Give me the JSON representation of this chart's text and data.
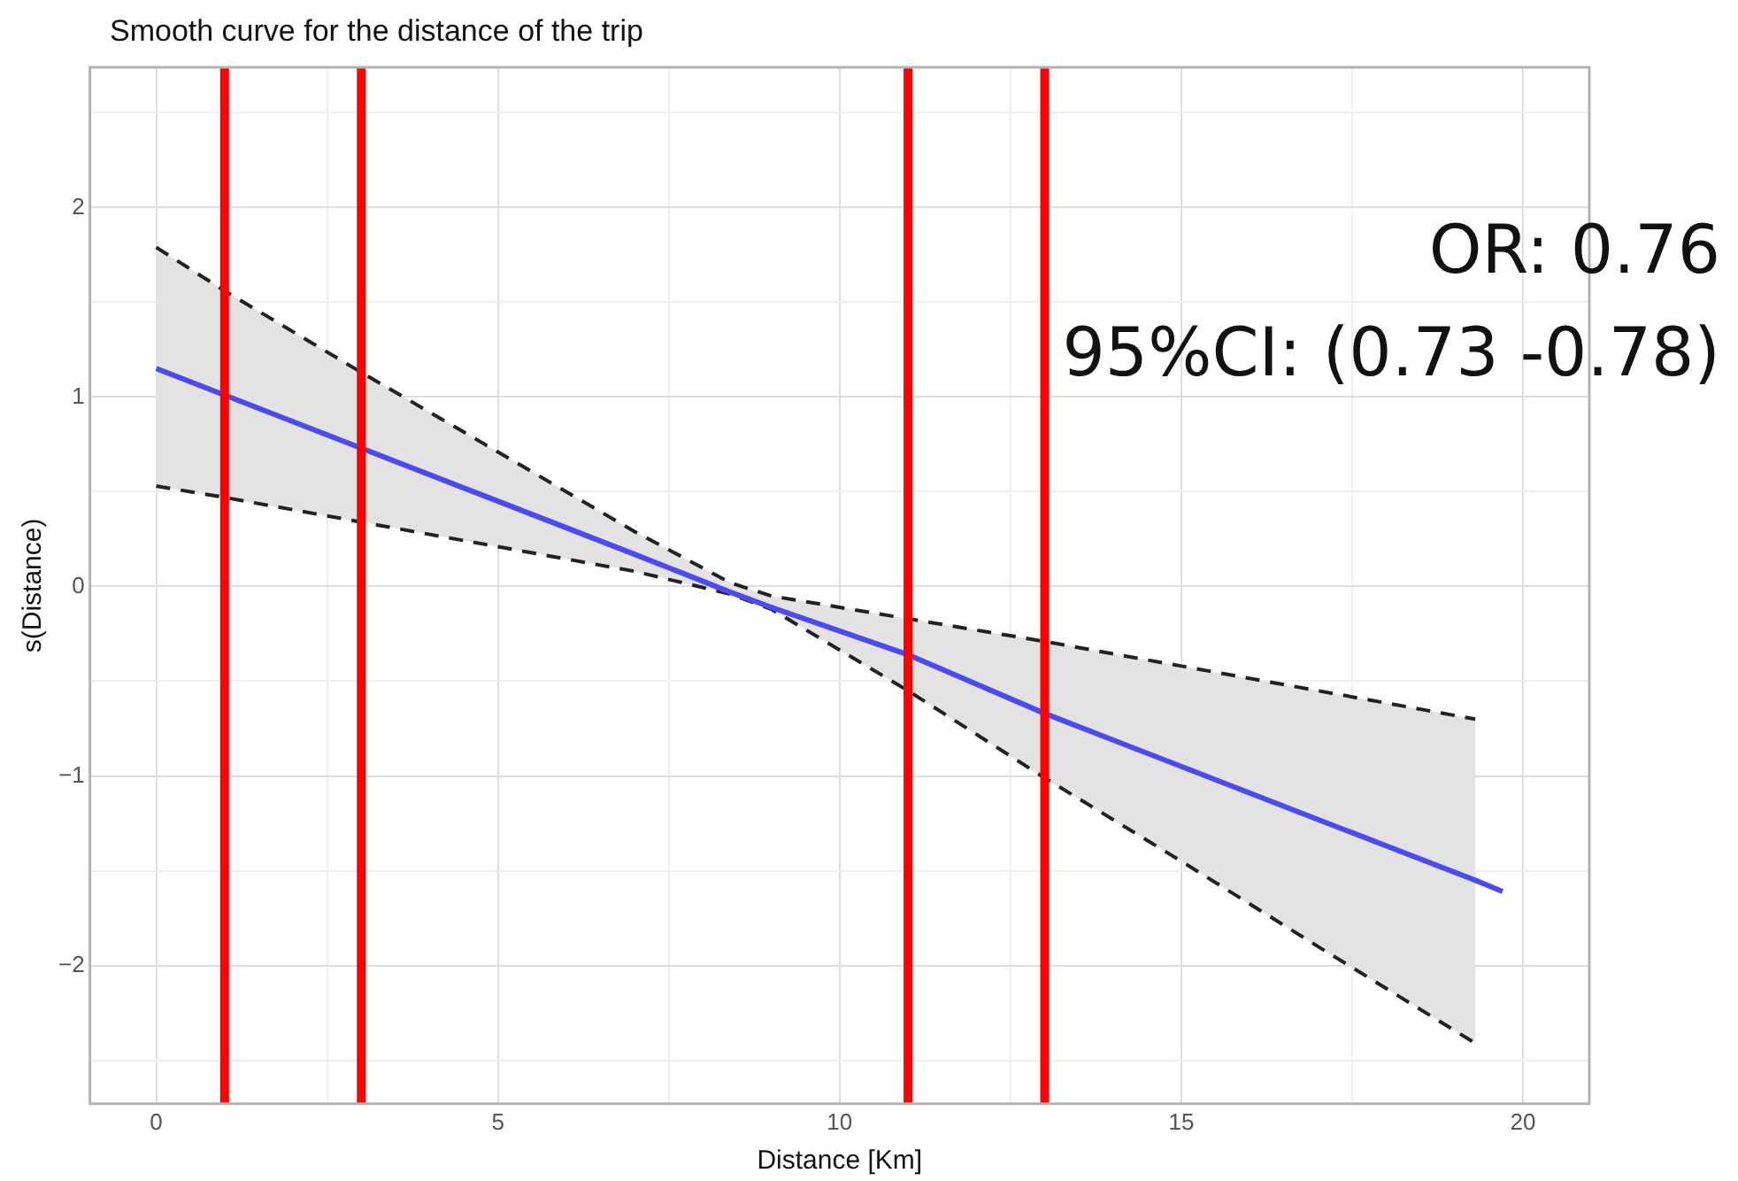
{
  "chart_data": {
    "type": "line",
    "title": "Smooth curve for the distance of the trip",
    "xlabel": "Distance [Km]",
    "ylabel": "s(Distance)",
    "annotations": [
      "OR: 0.76",
      "95%CI: (0.73 -0.78)"
    ],
    "xlim": [
      -0.97,
      20.97
    ],
    "ylim": [
      -2.73,
      2.74
    ],
    "xticks": [
      0,
      {
        "value": 2.5,
        "label": null
      },
      5,
      {
        "value": 7.5,
        "label": null
      },
      10,
      {
        "value": 12.5,
        "label": null
      },
      15,
      {
        "value": 17.5,
        "label": null
      },
      20
    ],
    "yticks": [
      {
        "value": -2.5,
        "label": null
      },
      {
        "value": -2,
        "label": "−2"
      },
      {
        "value": -1.5,
        "label": null
      },
      {
        "value": -1,
        "label": "−1"
      },
      {
        "value": -0.5,
        "label": null
      },
      0,
      {
        "value": 0.5,
        "label": null
      },
      1,
      {
        "value": 1.5,
        "label": null
      },
      2,
      {
        "value": 2.5,
        "label": null
      }
    ],
    "grid": true,
    "marker": "none",
    "line_style": "solid",
    "series": [
      {
        "color": "#4b4bef",
        "x": [
          0,
          1,
          3,
          5,
          7,
          8.4,
          9,
          11,
          13,
          15,
          17,
          19.3,
          19.7
        ],
        "values": [
          1.15,
          1.01,
          0.73,
          0.45,
          0.17,
          -0.03,
          -0.11,
          -0.36,
          -0.67,
          -0.95,
          -1.23,
          -1.55,
          -1.61
        ],
        "lower": [
          0.53,
          0.47,
          0.34,
          0.21,
          0.08,
          -0.04,
          -0.12,
          -0.55,
          -1.01,
          -1.45,
          -1.9,
          -2.41,
          null
        ],
        "upper": [
          1.79,
          1.56,
          1.13,
          0.71,
          0.29,
          0.02,
          -0.05,
          -0.17,
          -0.29,
          -0.42,
          -0.55,
          -0.7,
          null
        ]
      },
      {
        "color": "#222222",
        "line_style": "dashed",
        "x": [
          0,
          1,
          3,
          5,
          7,
          8.4,
          9,
          11,
          13,
          15,
          17,
          19.3
        ],
        "values": [
          1.79,
          1.56,
          1.13,
          0.71,
          0.29,
          0.02,
          -0.05,
          -0.17,
          -0.29,
          -0.42,
          -0.55,
          -0.7
        ]
      },
      {
        "color": "#222222",
        "line_style": "dashed",
        "x": [
          0,
          1,
          3,
          5,
          7,
          8.4,
          9,
          11,
          13,
          15,
          17,
          19.3
        ],
        "values": [
          0.53,
          0.47,
          0.34,
          0.21,
          0.08,
          -0.04,
          -0.12,
          -0.55,
          -1.01,
          -1.45,
          -1.9,
          -2.41
        ]
      }
    ],
    "ref_lines": [
      {
        "axis": "x",
        "value": 1,
        "color": "#ff0000"
      },
      {
        "axis": "x",
        "value": 3,
        "color": "#ff0000"
      },
      {
        "axis": "x",
        "value": 11,
        "color": "#ff0000"
      },
      {
        "axis": "x",
        "value": 13,
        "color": "#ff0000"
      }
    ]
  }
}
